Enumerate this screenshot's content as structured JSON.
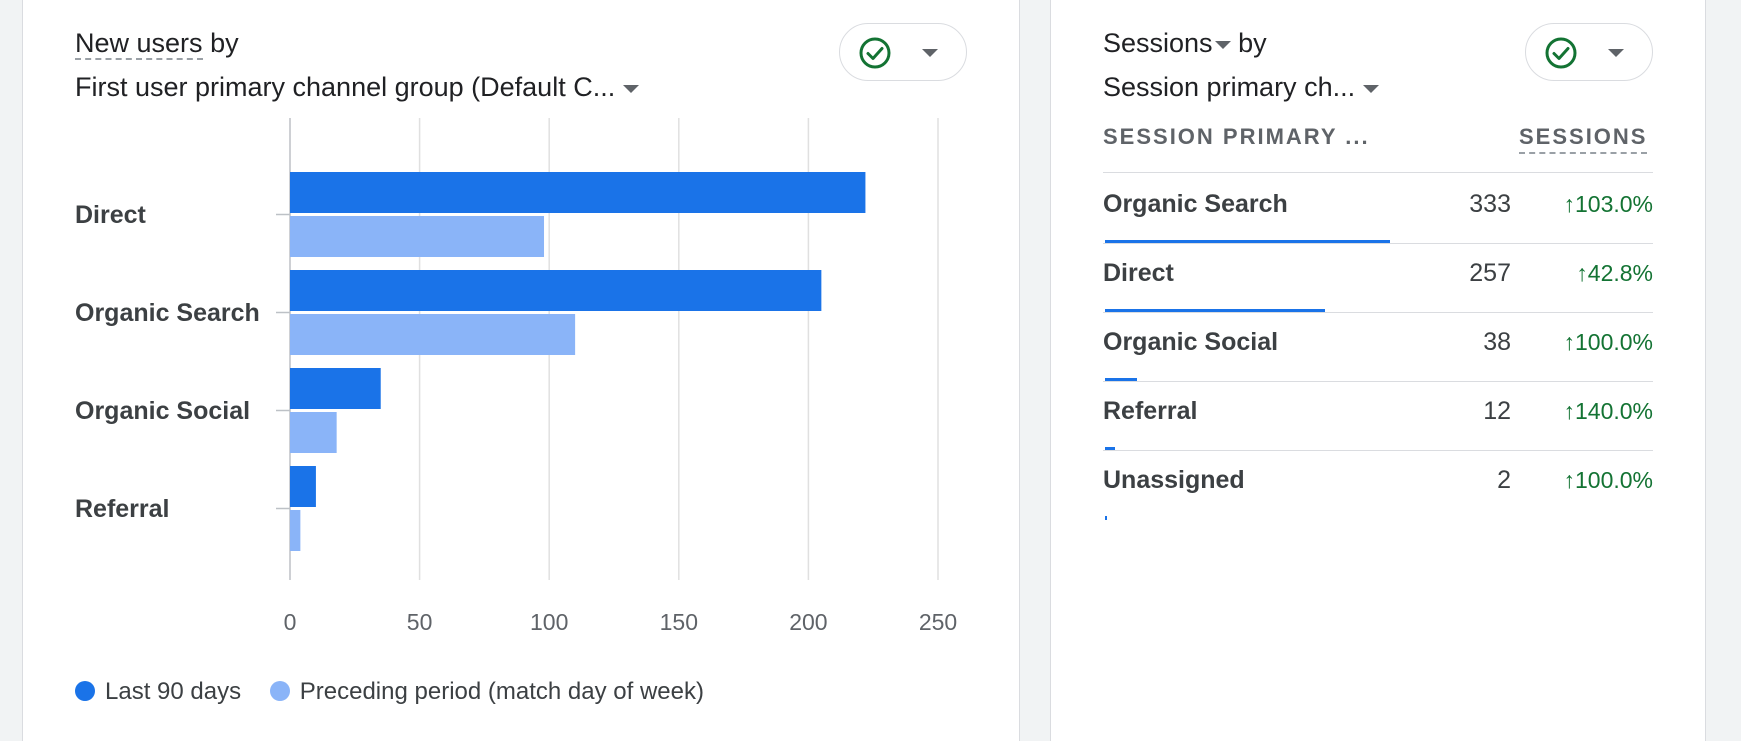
{
  "left_card": {
    "title_metric": "New users",
    "title_by": "by",
    "title_dimension": "First user primary channel group (Default C...",
    "check_icon": "check-circle-icon",
    "dropdown_icon": "caret-down-icon"
  },
  "chart_data": {
    "type": "bar",
    "orientation": "horizontal",
    "categories": [
      "Direct",
      "Organic Search",
      "Organic Social",
      "Referral"
    ],
    "series": [
      {
        "name": "Last 90 days",
        "values": [
          222,
          205,
          35,
          10
        ],
        "color": "#1a73e8"
      },
      {
        "name": "Preceding period (match day of week)",
        "values": [
          98,
          110,
          18,
          4
        ],
        "color": "#8ab4f8"
      }
    ],
    "xlim": [
      0,
      250
    ],
    "xticks": [
      "0",
      "50",
      "100",
      "150",
      "200",
      "250"
    ],
    "grid": true,
    "legend": "bottom-left"
  },
  "right_card": {
    "title_metric": "Sessions",
    "title_by": "by",
    "title_dimension": "Session primary ch...",
    "col_dimension": "SESSION PRIMARY ...",
    "col_metric": "SESSIONS",
    "rows": [
      {
        "label": "Organic Search",
        "value": "333",
        "change": "103.0%",
        "share": 1.0
      },
      {
        "label": "Direct",
        "value": "257",
        "change": "42.8%",
        "share": 0.772
      },
      {
        "label": "Organic Social",
        "value": "38",
        "change": "100.0%",
        "share": 0.114
      },
      {
        "label": "Referral",
        "value": "12",
        "change": "140.0%",
        "share": 0.036
      },
      {
        "label": "Unassigned",
        "value": "2",
        "change": "100.0%",
        "share": 0.006
      }
    ],
    "colors": {
      "bar": "#1a73e8",
      "positive": "#137333"
    }
  }
}
